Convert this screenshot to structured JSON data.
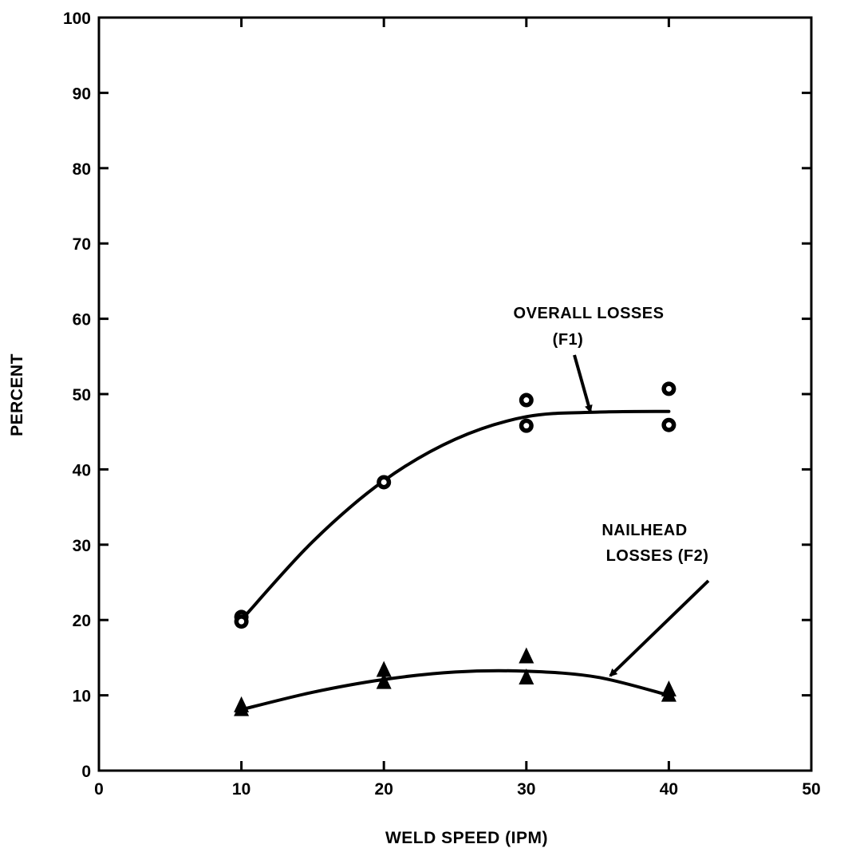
{
  "chart_data": {
    "type": "scatter",
    "xlabel": "WELD SPEED (IPM)",
    "ylabel": "PERCENT",
    "xlim": [
      0,
      50
    ],
    "ylim": [
      0,
      100
    ],
    "x_ticks": [
      0,
      10,
      20,
      30,
      40,
      50
    ],
    "y_ticks": [
      0,
      10,
      20,
      30,
      40,
      50,
      60,
      70,
      80,
      90,
      100
    ],
    "grid": false,
    "series": [
      {
        "name": "OVERALL LOSSES (F1)",
        "marker": "circle",
        "points": [
          {
            "x": 10,
            "y": 20.4
          },
          {
            "x": 10,
            "y": 19.8
          },
          {
            "x": 20,
            "y": 38.3
          },
          {
            "x": 30,
            "y": 49.2
          },
          {
            "x": 30,
            "y": 45.8
          },
          {
            "x": 40,
            "y": 50.7
          },
          {
            "x": 40,
            "y": 45.9
          }
        ],
        "fit_curve": [
          [
            10,
            20
          ],
          [
            15,
            30.4
          ],
          [
            20,
            38.5
          ],
          [
            25,
            44
          ],
          [
            30,
            47
          ],
          [
            35,
            47.6
          ],
          [
            40,
            47.7
          ]
        ]
      },
      {
        "name": "NAILHEAD LOSSES (F2)",
        "marker": "triangle",
        "points": [
          {
            "x": 10,
            "y": 8.7
          },
          {
            "x": 10,
            "y": 8.2
          },
          {
            "x": 20,
            "y": 13.4
          },
          {
            "x": 20,
            "y": 11.8
          },
          {
            "x": 30,
            "y": 15.2
          },
          {
            "x": 30,
            "y": 12.4
          },
          {
            "x": 40,
            "y": 10.8
          },
          {
            "x": 40,
            "y": 10.1
          }
        ],
        "fit_curve": [
          [
            10,
            8.1
          ],
          [
            15,
            10.4
          ],
          [
            20,
            12.1
          ],
          [
            25,
            13.1
          ],
          [
            30,
            13.2
          ],
          [
            35,
            12.4
          ],
          [
            40,
            10
          ]
        ]
      }
    ],
    "annotations": [
      {
        "lines": [
          "OVERALL LOSSES",
          "(F1)"
        ],
        "series": 0
      },
      {
        "lines": [
          "NAILHEAD",
          "LOSSES (F2)"
        ],
        "series": 1
      }
    ]
  }
}
